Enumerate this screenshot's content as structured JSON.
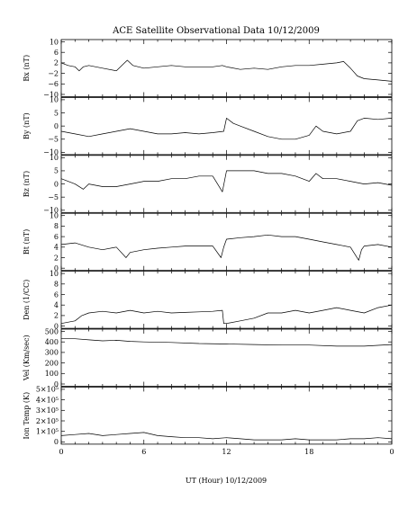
{
  "chart_data": {
    "type": "line",
    "title": "ACE Satellite Observational Data   10/12/2009",
    "xlabel": "UT (Hour)   10/12/2009",
    "x_ticks": [
      "0",
      "6",
      "12",
      "18",
      "0"
    ],
    "xlim": [
      0,
      24
    ],
    "panels": [
      {
        "ylabel": "Bx (nT)",
        "ylim": [
          -10,
          10
        ],
        "y_ticks": [
          "10",
          "6",
          "2",
          "−2",
          "−6",
          "−10"
        ],
        "y_tick_values": [
          10,
          6,
          2,
          -2,
          -6,
          -10
        ],
        "x": [
          0,
          0.5,
          1,
          1.3,
          1.6,
          2,
          3,
          4,
          4.6,
          4.8,
          5.2,
          6,
          7,
          8,
          9,
          10,
          11,
          11.7,
          12,
          13,
          14,
          15,
          16,
          17,
          18,
          19,
          20,
          20.5,
          21,
          21.5,
          22,
          23,
          24
        ],
        "y": [
          2,
          1,
          0.5,
          -1,
          0.5,
          1,
          0,
          -1,
          2,
          3,
          1,
          0,
          0.5,
          1,
          0.5,
          0.5,
          0.5,
          1,
          0.5,
          -0.5,
          0,
          -0.5,
          0.5,
          1,
          1,
          1.5,
          2,
          2.5,
          0,
          -3,
          -4,
          -4.5,
          -5
        ]
      },
      {
        "ylabel": "By (nT)",
        "ylim": [
          -10,
          10
        ],
        "y_ticks": [
          "10",
          "5",
          "0",
          "−5",
          "−10"
        ],
        "y_tick_values": [
          10,
          5,
          0,
          -5,
          -10
        ],
        "x": [
          0,
          1,
          2,
          3,
          4,
          5,
          6,
          7,
          8,
          9,
          10,
          11,
          11.8,
          12,
          12.5,
          13,
          14,
          15,
          16,
          17,
          18,
          18.5,
          19,
          20,
          21,
          21.5,
          22,
          23,
          24
        ],
        "y": [
          -2,
          -3,
          -4,
          -3,
          -2,
          -1,
          -2,
          -3,
          -3,
          -2.5,
          -3,
          -2.5,
          -2,
          3,
          1,
          0,
          -2,
          -4,
          -5,
          -5,
          -3.5,
          0,
          -2,
          -3,
          -2,
          2,
          3,
          2.5,
          3
        ]
      },
      {
        "ylabel": "Bz (nT)",
        "ylim": [
          -10,
          10
        ],
        "y_ticks": [
          "10",
          "5",
          "0",
          "−5",
          "−10"
        ],
        "y_tick_values": [
          10,
          5,
          0,
          -5,
          -10
        ],
        "x": [
          0,
          1,
          1.6,
          2,
          3,
          4,
          5,
          6,
          7,
          8,
          9,
          10,
          11,
          11.7,
          12,
          12.5,
          13,
          14,
          15,
          16,
          17,
          18,
          18.5,
          19,
          20,
          21,
          22,
          23,
          24
        ],
        "y": [
          2,
          0,
          -2,
          0,
          -1,
          -1,
          0,
          1,
          1,
          2,
          2,
          3,
          3,
          -3,
          5,
          5,
          5,
          5,
          4,
          4,
          3,
          1,
          4,
          2,
          2,
          1,
          0,
          0.5,
          -0.5
        ]
      },
      {
        "ylabel": "Bt (nT)",
        "ylim": [
          0,
          10
        ],
        "y_ticks": [
          "10",
          "8",
          "6",
          "4",
          "2",
          "0"
        ],
        "y_tick_values": [
          10,
          8,
          6,
          4,
          2,
          0
        ],
        "x": [
          0,
          1,
          2,
          3,
          4,
          4.7,
          5,
          6,
          7,
          8,
          9,
          10,
          11,
          11.6,
          11.8,
          12,
          13,
          14,
          15,
          16,
          17,
          18,
          19,
          20,
          21,
          21.6,
          21.8,
          22,
          23,
          24
        ],
        "y": [
          4.5,
          4.8,
          4,
          3.5,
          4,
          2,
          3,
          3.5,
          3.8,
          4,
          4.2,
          4.2,
          4.2,
          2,
          4,
          5.5,
          5.8,
          6,
          6.3,
          6,
          6,
          5.5,
          5,
          4.5,
          4,
          1.5,
          3.5,
          4.2,
          4.5,
          4
        ]
      },
      {
        "ylabel": "Den (1/CC)",
        "ylim": [
          0,
          10
        ],
        "y_ticks": [
          "10",
          "8",
          "6",
          "4",
          "2",
          "0"
        ],
        "y_tick_values": [
          10,
          8,
          6,
          4,
          2,
          0
        ],
        "x": [
          0,
          1,
          1.5,
          2,
          3,
          4,
          5,
          6,
          7,
          8,
          9,
          10,
          11,
          11.7,
          11.8,
          12,
          13,
          14,
          15,
          16,
          17,
          18,
          19,
          20,
          21,
          22,
          23,
          24
        ],
        "y": [
          0.5,
          1,
          2,
          2.5,
          2.8,
          2.5,
          3,
          2.5,
          2.8,
          2.5,
          2.6,
          2.7,
          2.8,
          3,
          0.5,
          0.5,
          1,
          1.5,
          2.5,
          2.5,
          3,
          2.5,
          3,
          3.5,
          3,
          2.5,
          3.5,
          4
        ]
      },
      {
        "ylabel": "Vel (Km/sec)",
        "ylim": [
          0,
          500
        ],
        "y_ticks": [
          "500",
          "400",
          "300",
          "200",
          "100",
          "0"
        ],
        "y_tick_values": [
          500,
          400,
          300,
          200,
          100,
          0
        ],
        "x": [
          0,
          1,
          2,
          3,
          4,
          5,
          6,
          8,
          10,
          12,
          14,
          16,
          18,
          20,
          22,
          24
        ],
        "y": [
          430,
          430,
          420,
          410,
          415,
          405,
          400,
          395,
          385,
          380,
          375,
          370,
          370,
          360,
          360,
          375
        ]
      },
      {
        "ylabel": "Ion Temp (K)",
        "ylim": [
          0,
          500000
        ],
        "y_ticks": [
          "5×10⁵",
          "4×10⁵",
          "3×10⁵",
          "2×10⁵",
          "1×10⁵",
          "0"
        ],
        "y_tick_values": [
          500000,
          400000,
          300000,
          200000,
          100000,
          0
        ],
        "x": [
          0,
          1,
          2,
          3,
          4,
          5,
          6,
          7,
          8,
          9,
          10,
          11,
          12,
          13,
          14,
          15,
          16,
          17,
          18,
          19,
          20,
          21,
          22,
          23,
          24
        ],
        "y": [
          60000,
          70000,
          80000,
          60000,
          70000,
          80000,
          90000,
          60000,
          50000,
          40000,
          40000,
          30000,
          40000,
          30000,
          20000,
          20000,
          20000,
          30000,
          20000,
          20000,
          20000,
          30000,
          30000,
          40000,
          30000
        ]
      }
    ]
  }
}
